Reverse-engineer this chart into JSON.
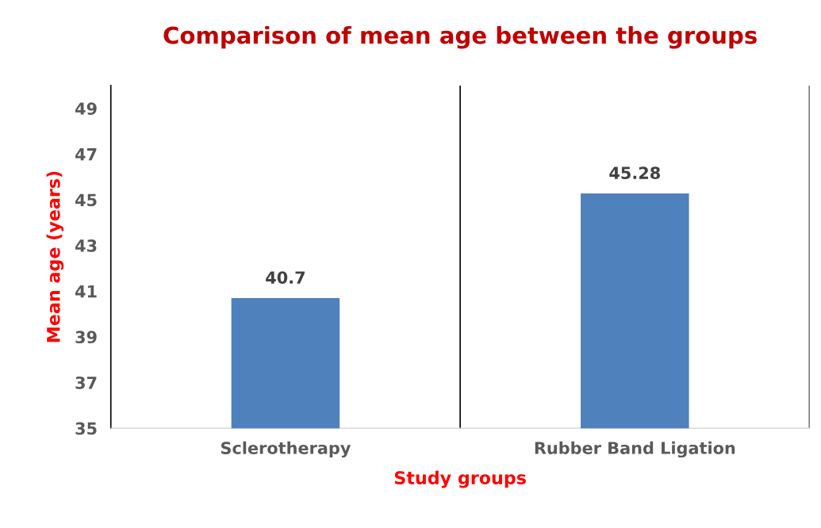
{
  "chart_data": {
    "type": "bar",
    "title": "Comparison of mean age between the groups",
    "xlabel": "Study groups",
    "ylabel": "Mean age (years)",
    "categories": [
      "Sclerotherapy",
      "Rubber Band Ligation"
    ],
    "values": [
      40.7,
      45.28
    ],
    "color": "#4f81bd",
    "data_labels": true,
    "ylim": [
      35,
      50
    ],
    "yticks": [
      35,
      37,
      39,
      41,
      43,
      45,
      47,
      49
    ],
    "grid": "x",
    "legend": false
  }
}
